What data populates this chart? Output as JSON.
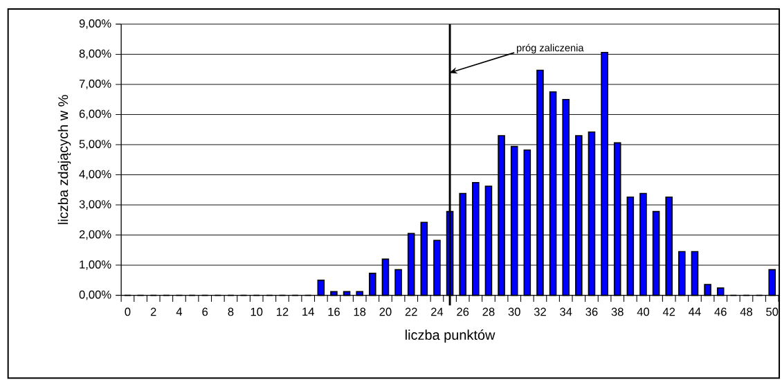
{
  "chart_data": {
    "type": "bar",
    "xlabel": "liczba punktów",
    "ylabel": "liczba zdających w %",
    "x": [
      0,
      1,
      2,
      3,
      4,
      5,
      6,
      7,
      8,
      9,
      10,
      11,
      12,
      13,
      14,
      15,
      16,
      17,
      18,
      19,
      20,
      21,
      22,
      23,
      24,
      25,
      26,
      27,
      28,
      29,
      30,
      31,
      32,
      33,
      34,
      35,
      36,
      37,
      38,
      39,
      40,
      41,
      42,
      43,
      44,
      45,
      46,
      47,
      48,
      49,
      50
    ],
    "xlim": [
      -0.5,
      50.5
    ],
    "xticks": [
      0,
      2,
      4,
      6,
      8,
      10,
      12,
      14,
      16,
      18,
      20,
      22,
      24,
      26,
      28,
      30,
      32,
      34,
      36,
      38,
      40,
      42,
      44,
      46,
      48,
      50
    ],
    "values": [
      0,
      0,
      0,
      0,
      0,
      0,
      0,
      0,
      0,
      0,
      0,
      0,
      0,
      0,
      0,
      0.5,
      0.12,
      0.12,
      0.12,
      0.73,
      1.2,
      0.85,
      2.05,
      2.42,
      1.82,
      2.78,
      3.38,
      3.74,
      3.62,
      5.3,
      4.94,
      4.82,
      7.47,
      6.75,
      6.5,
      5.3,
      5.42,
      8.06,
      5.06,
      3.26,
      3.38,
      2.78,
      3.26,
      1.45,
      1.45,
      0.36,
      0.24,
      0,
      0,
      0,
      0.85
    ],
    "color": "#0000ff",
    "ylim": [
      0,
      9
    ],
    "yticks": [
      {
        "value": 0,
        "label": "0,00%"
      },
      {
        "value": 1,
        "label": "1,00%"
      },
      {
        "value": 2,
        "label": "2,00%"
      },
      {
        "value": 3,
        "label": "3,00%"
      },
      {
        "value": 4,
        "label": "4,00%"
      },
      {
        "value": 5,
        "label": "5,00%"
      },
      {
        "value": 6,
        "label": "6,00%"
      },
      {
        "value": 7,
        "label": "7,00%"
      },
      {
        "value": 8,
        "label": "8,00%"
      },
      {
        "value": 9,
        "label": "9,00%"
      }
    ],
    "grid": "y",
    "ref_lines": [
      {
        "axis": "x",
        "value": 25,
        "label": "próg zaliczenia",
        "color": "#000000"
      }
    ]
  }
}
